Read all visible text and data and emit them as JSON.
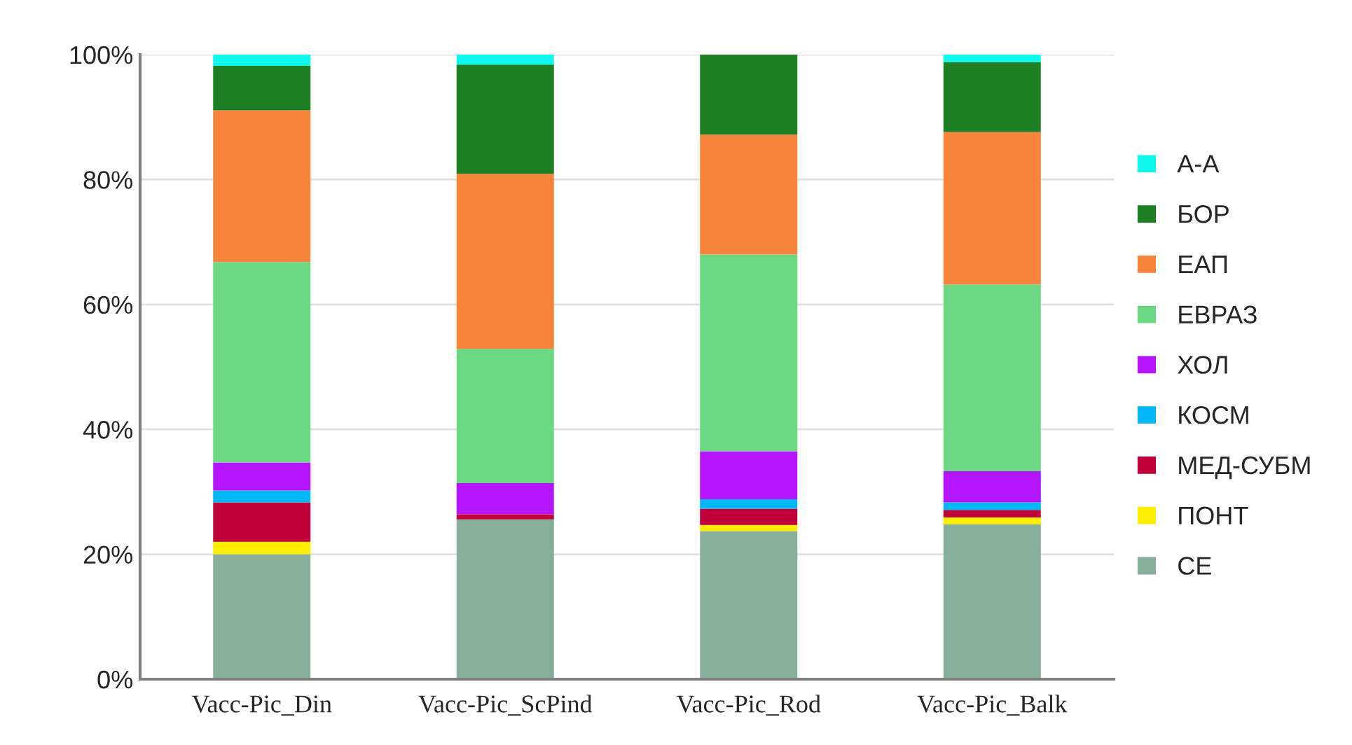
{
  "chart_data": {
    "type": "bar",
    "stacked": true,
    "categories": [
      "Vacc-Pic_Din",
      "Vacc-Pic_ScPind",
      "Vacc-Pic_Rod",
      "Vacc-Pic_Balk"
    ],
    "series": [
      {
        "name": "СЕ",
        "color": "#86ae9a",
        "values": [
          20.0,
          25.6,
          23.7,
          24.8
        ]
      },
      {
        "name": "ПОНТ",
        "color": "#ffee00",
        "values": [
          2.0,
          0,
          1.0,
          1.1
        ]
      },
      {
        "name": "МЕД-СУБМ",
        "color": "#c00038",
        "values": [
          6.3,
          0.8,
          2.6,
          1.2
        ]
      },
      {
        "name": "КОСМ",
        "color": "#00b8f5",
        "values": [
          1.9,
          0,
          1.5,
          1.2
        ]
      },
      {
        "name": "ХОЛ",
        "color": "#b414ff",
        "values": [
          4.5,
          5.0,
          7.7,
          5.0
        ]
      },
      {
        "name": "ЕВРАЗ",
        "color": "#6dd884",
        "values": [
          32.1,
          21.5,
          31.5,
          29.9
        ]
      },
      {
        "name": "ЕАП",
        "color": "#f6843a",
        "values": [
          24.3,
          28.0,
          19.2,
          24.4
        ]
      },
      {
        "name": "БОР",
        "color": "#1e7e24",
        "values": [
          7.1,
          17.5,
          12.8,
          11.2
        ]
      },
      {
        "name": "А-А",
        "color": "#10f8ee",
        "values": [
          1.9,
          1.6,
          0,
          1.2
        ]
      }
    ],
    "ylim": [
      0,
      100
    ],
    "yticks": [
      {
        "value": 0,
        "label": "0%"
      },
      {
        "value": 20,
        "label": "20%"
      },
      {
        "value": 40,
        "label": "40%"
      },
      {
        "value": 60,
        "label": "60%"
      },
      {
        "value": 80,
        "label": "80%"
      },
      {
        "value": 100,
        "label": "100%"
      }
    ],
    "grid": "y",
    "legend": "right"
  }
}
